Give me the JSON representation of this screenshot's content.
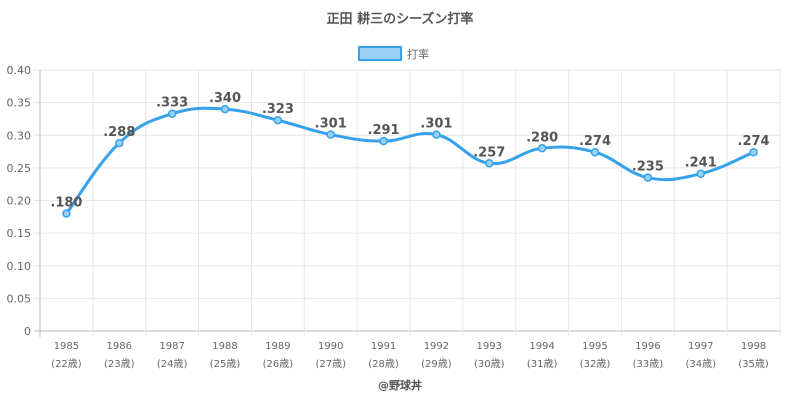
{
  "chart_data": {
    "type": "line",
    "title": "正田 耕三のシーズン打率",
    "legend": "top",
    "series": [
      {
        "name": "打率",
        "color": "#36a2eb",
        "fill": "#9ad0f5",
        "values": [
          0.18,
          0.288,
          0.333,
          0.34,
          0.323,
          0.301,
          0.291,
          0.301,
          0.257,
          0.28,
          0.274,
          0.235,
          0.241,
          0.274
        ],
        "labels": [
          ".180",
          ".288",
          ".333",
          ".340",
          ".323",
          ".301",
          ".291",
          ".301",
          ".257",
          ".280",
          ".274",
          ".235",
          ".241",
          ".274"
        ]
      }
    ],
    "categories": [
      "1985",
      "1986",
      "1987",
      "1988",
      "1989",
      "1990",
      "1991",
      "1992",
      "1993",
      "1994",
      "1995",
      "1996",
      "1997",
      "1998"
    ],
    "category_sublabels": [
      "(22歳)",
      "(23歳)",
      "(24歳)",
      "(25歳)",
      "(26歳)",
      "(27歳)",
      "(28歳)",
      "(29歳)",
      "(30歳)",
      "(31歳)",
      "(32歳)",
      "(33歳)",
      "(34歳)",
      "(35歳)"
    ],
    "ylim": [
      0,
      0.4
    ],
    "yticks": [
      "0",
      "0.05",
      "0.10",
      "0.15",
      "0.20",
      "0.25",
      "0.30",
      "0.35",
      "0.40"
    ],
    "grid": true,
    "footer": "@野球丼"
  }
}
